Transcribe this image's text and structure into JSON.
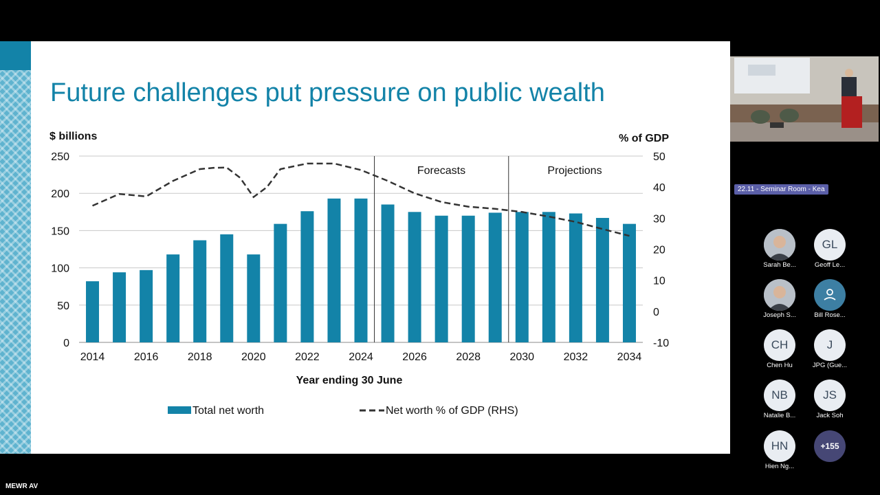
{
  "slide": {
    "title": "Future challenges put pressure on public wealth"
  },
  "chart_data": {
    "type": "bar",
    "title": "Future challenges put pressure on public wealth",
    "ylabel_left": "$ billions",
    "ylabel_right": "% of GDP",
    "xlabel": "Year ending 30 June",
    "ylim_left": [
      0,
      250
    ],
    "ylim_right": [
      -10,
      50
    ],
    "yticks_left": [
      "0",
      "50",
      "100",
      "150",
      "200",
      "250"
    ],
    "yticks_right": [
      "-10",
      "0",
      "10",
      "20",
      "30",
      "40",
      "50"
    ],
    "xtick_labels": [
      "2014",
      "2016",
      "2018",
      "2020",
      "2022",
      "2024",
      "2026",
      "2028",
      "2030",
      "2032",
      "2034"
    ],
    "categories": [
      2014,
      2015,
      2016,
      2017,
      2018,
      2019,
      2020,
      2021,
      2022,
      2023,
      2024,
      2025,
      2026,
      2027,
      2028,
      2029,
      2030,
      2031,
      2032,
      2033,
      2034
    ],
    "series": [
      {
        "name": "Total net worth",
        "type": "bar",
        "color": "#1383a8",
        "values": [
          82,
          94,
          97,
          118,
          137,
          145,
          118,
          159,
          176,
          193,
          193,
          185,
          175,
          170,
          170,
          174,
          175,
          175,
          173,
          167,
          159
        ]
      },
      {
        "name": "Net worth % of GDP (RHS)",
        "type": "line",
        "style": "dashed",
        "color": "#333333",
        "x": [
          2014,
          2015,
          2016,
          2017,
          2018,
          2018.5,
          2019,
          2019.5,
          2020,
          2020.5,
          2021,
          2022,
          2023,
          2024,
          2025,
          2026,
          2027,
          2028,
          2029,
          2030,
          2031,
          2032,
          2033,
          2034
        ],
        "values": [
          34,
          37.8,
          37,
          42,
          45.8,
          46.2,
          46.3,
          43,
          36.8,
          40,
          45.8,
          47.6,
          47.6,
          45.5,
          42,
          38,
          35.2,
          33.7,
          33,
          32,
          30.5,
          28.8,
          26.5,
          24.3
        ]
      }
    ],
    "section_labels": [
      "Forecasts",
      "Projections"
    ],
    "legend": [
      "Total net worth",
      "Net worth % of GDP (RHS)"
    ],
    "legend_position": "bottom"
  },
  "meeting": {
    "room_label": "22.11 - Seminar Room - Kea",
    "participants": [
      {
        "name": "Sarah Be...",
        "initials": "",
        "photo": true
      },
      {
        "name": "Geoff Le...",
        "initials": "GL"
      },
      {
        "name": "Joseph S...",
        "initials": "",
        "photo": true
      },
      {
        "name": "Bill Rose...",
        "initials": "",
        "icon": "person-icon"
      },
      {
        "name": "Chen Hu",
        "initials": "CH"
      },
      {
        "name": "JPG (Gue...",
        "initials": "J"
      },
      {
        "name": "Natalie B...",
        "initials": "NB"
      },
      {
        "name": "Jack Soh",
        "initials": "JS"
      },
      {
        "name": "Hien Ng...",
        "initials": "HN"
      },
      {
        "name": "",
        "initials": "+155"
      }
    ],
    "bottom_label": "MEWR AV"
  },
  "colors": {
    "bar": "#1383a8",
    "title": "#1383a8",
    "avatar_bg": "#e9edf2",
    "more_bg": "#464775"
  }
}
